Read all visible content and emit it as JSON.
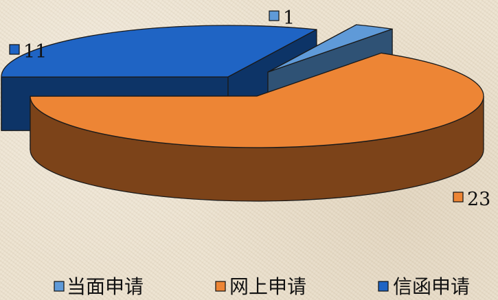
{
  "chart_data": {
    "type": "pie",
    "style": "3d-exploded",
    "categories": [
      "当面申请",
      "网上申请",
      "信函申请"
    ],
    "values": [
      1,
      23,
      11
    ],
    "colors": {
      "当面申请": "#5f9ad8",
      "网上申请": "#ed8535",
      "信函申请": "#1f64c4"
    },
    "side_colors": {
      "当面申请": "#2f5275",
      "网上申请": "#7c4319",
      "信函申请": "#0d3467"
    },
    "data_labels": [
      "1",
      "23",
      "11"
    ],
    "legend_position": "bottom",
    "title": ""
  }
}
